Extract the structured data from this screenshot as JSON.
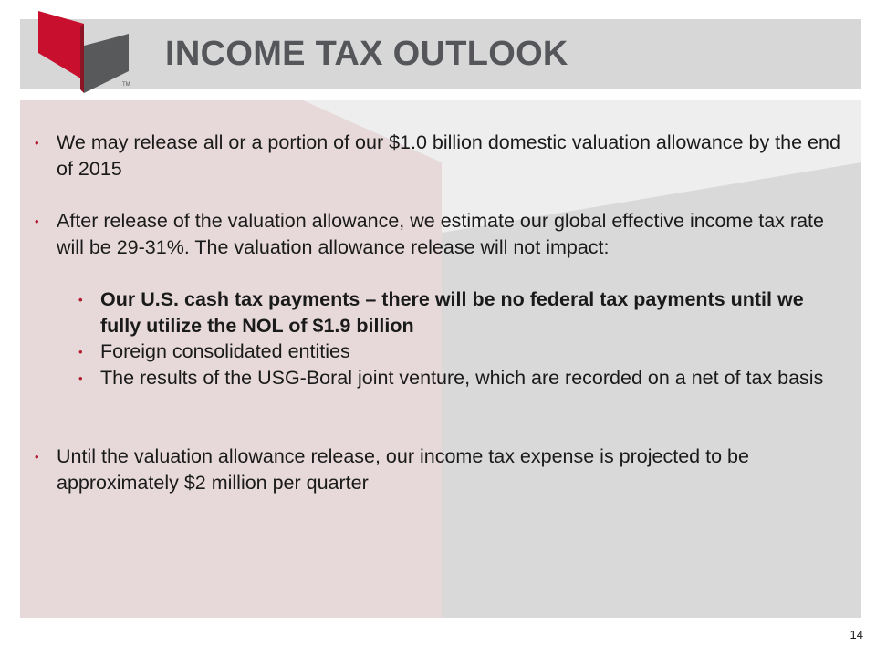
{
  "slide": {
    "title": "INCOME TAX OUTLOOK",
    "logo": {
      "mark": "TM"
    },
    "bullets": [
      {
        "level": 1,
        "bold": false,
        "text": "We may release all or a portion of our $1.0 billion domestic valuation allowance by the end of 2015"
      },
      {
        "level": 1,
        "bold": false,
        "text": "After release of the valuation allowance, we estimate our global effective income tax rate will be 29-31%. The valuation allowance release will not impact:"
      },
      {
        "level": 2,
        "bold": true,
        "text": "Our U.S. cash tax payments – there will be no federal tax payments until we fully utilize the NOL of $1.9 billion"
      },
      {
        "level": 2,
        "bold": false,
        "text": "Foreign consolidated entities"
      },
      {
        "level": 2,
        "bold": false,
        "text": "The results of the USG-Boral joint venture, which are recorded on a net of tax basis"
      },
      {
        "level": 1,
        "bold": false,
        "text": "Until the valuation allowance release, our income tax expense is projected to be approximately $2 million per quarter"
      }
    ],
    "bullet_glyph": "•",
    "page_number": "14"
  },
  "colors": {
    "brand_red": "#c8102e",
    "brand_gray": "#58595b",
    "header_band": "#d7d7d8",
    "panel": "#eeeeee",
    "bullet_dot": "#b11c2f"
  }
}
